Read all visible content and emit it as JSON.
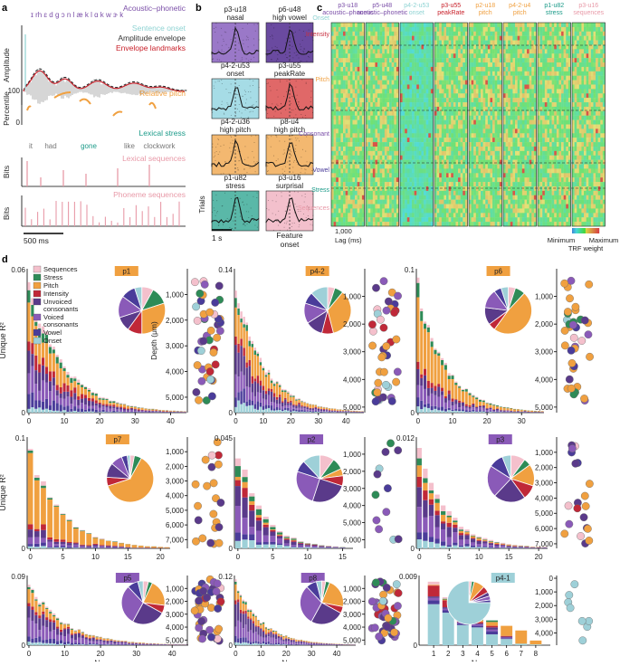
{
  "panels": {
    "a": "a",
    "b": "b",
    "c": "c",
    "d": "d"
  },
  "colors": {
    "acoustic": "#7b4fa8",
    "onset": "#8fd3d3",
    "envelope": "#333333",
    "landmark": "#c8202a",
    "pitch": "#f0a040",
    "stress": "#1a9a88",
    "lexical": "#e89aa8",
    "phoneme": "#e89aa8",
    "intensity": "#c83040",
    "unvoiced": "#5a3a8a",
    "voiced": "#8a5ab8",
    "vowel": "#4a3c9a"
  },
  "panel_a": {
    "phonemes": "ɪ rh ɛ d  ɡ ɔ   n l   æ   k l ɑ   k w ɝ   k",
    "legend": {
      "acoustic": "Acoustic–phonetic",
      "onset": "Sentence onset",
      "envelope": "Amplitude envelope",
      "landmarks": "Envelope landmarks",
      "pitch": "Relative pitch",
      "stress": "Lexical stress",
      "lexical": "Lexical sequences",
      "phoneme": "Phoneme sequences"
    },
    "ylabels": {
      "amplitude": "Amplitude",
      "percentile": "Percentile",
      "bits1": "Bits",
      "bits2": "Bits"
    },
    "pct_ticks": [
      "100",
      "0"
    ],
    "words": [
      {
        "text": "it",
        "color": "#777777"
      },
      {
        "text": "had",
        "color": "#777777"
      },
      {
        "text": "gone",
        "color": "#1a9a88"
      },
      {
        "text": "like",
        "color": "#777777"
      },
      {
        "text": "clockwork",
        "color": "#777777"
      }
    ],
    "scalebar": "500 ms"
  },
  "panel_b": {
    "units": [
      {
        "id": "p3-u18",
        "label": "nasal",
        "bg": "#9a78c8"
      },
      {
        "id": "p6-u48",
        "label": "high vowel",
        "bg": "#6a4aa0"
      },
      {
        "id": "p4-2-u53",
        "label": "onset",
        "bg": "#a6dce6"
      },
      {
        "id": "p3-u55",
        "label": "peakRate",
        "bg": "#e06868"
      },
      {
        "id": "p4-2-u36",
        "label": "high pitch",
        "bg": "#f3b870"
      },
      {
        "id": "p8-u4",
        "label": "high pitch",
        "bg": "#f3b870"
      },
      {
        "id": "p1-u82",
        "label": "stress",
        "bg": "#5ab8a8"
      },
      {
        "id": "p3-u16",
        "label": "surprisal",
        "bg": "#f3c0cc"
      }
    ],
    "trials": "Trials",
    "scale": "1 s",
    "feature_onset": "Feature\nonset"
  },
  "panel_c": {
    "columns": [
      {
        "id": "p3-u18",
        "label": "acoustic–phonetic",
        "color": "#7b4fa8"
      },
      {
        "id": "p5-u48",
        "label": "acoustic–phonetic",
        "color": "#7b4fa8"
      },
      {
        "id": "p4-2-u53",
        "label": "onset",
        "color": "#8fd3d3"
      },
      {
        "id": "p3-u55",
        "label": "peakRate",
        "color": "#c8202a"
      },
      {
        "id": "p2-u18",
        "label": "pitch",
        "color": "#f0a040"
      },
      {
        "id": "p4-2-u4",
        "label": "pitch",
        "color": "#f0a040"
      },
      {
        "id": "p1-u82",
        "label": "stress",
        "color": "#1a9a88"
      },
      {
        "id": "p3-u16",
        "label": "sequences",
        "color": "#e89aa8"
      }
    ],
    "rows": [
      {
        "label": "Onset",
        "color": "#8fd3d3"
      },
      {
        "label": "Intensity",
        "color": "#c83040"
      },
      {
        "label": "Pitch",
        "color": "#f0a040"
      },
      {
        "label": "Consonant",
        "color": "#7b4fa8"
      },
      {
        "label": "Vowel",
        "color": "#4a3c9a"
      },
      {
        "label": "Stress",
        "color": "#1a9a88"
      },
      {
        "label": "Sequences",
        "color": "#e89aa8"
      }
    ],
    "lag_tick": "1,000",
    "lag_label": "Lag (ms)",
    "cbar_min": "Minimum",
    "cbar_max": "Maximum",
    "cbar_label": "TRF weight"
  },
  "panel_d": {
    "legend": [
      {
        "label": "Sequences",
        "color": "#f4c0cc"
      },
      {
        "label": "Stress",
        "color": "#2e8b57"
      },
      {
        "label": "Pitch",
        "color": "#f0a040"
      },
      {
        "label": "Intensity",
        "color": "#c02838"
      },
      {
        "label": "Unvoiced\nconsonants",
        "color": "#5a3a8a"
      },
      {
        "label": "Voiced\nconsonants",
        "color": "#8a5ab8"
      },
      {
        "label": "Vowel",
        "color": "#4a3c9a"
      },
      {
        "label": "Onset",
        "color": "#9ed0d8"
      }
    ],
    "ylabel": "Unique R²",
    "xlabel": "Neuron",
    "depth_label": "Depth (μm)"
  },
  "chart_data": [
    {
      "type": "bar",
      "title": "p1",
      "badge_color": "#f0a040",
      "ylim": [
        0,
        0.06
      ],
      "ymax_label": "0.06",
      "n": 45,
      "xticks": [
        0,
        10,
        20,
        30,
        40
      ],
      "xlim": [
        0,
        45
      ],
      "composition": {
        "Sequences": 0.06,
        "Stress": 0.09,
        "Pitch": 0.26,
        "Intensity": 0.12,
        "Unvoiced consonants": 0.16,
        "Voiced consonants": 0.17,
        "Vowel": 0.1,
        "Onset": 0.04
      },
      "pie": [
        0.08,
        0.12,
        0.3,
        0.1,
        0.1,
        0.15,
        0.1,
        0.05
      ],
      "depth_ticks": [
        1000,
        2000,
        3000,
        4000,
        5000
      ],
      "depth_range": [
        0,
        5600
      ],
      "depth_points": 45
    },
    {
      "type": "bar",
      "title": "p4-2",
      "badge_color": "#f0a040",
      "ylim": [
        0,
        0.14
      ],
      "ymax_label": "0.14",
      "n": 47,
      "xticks": [
        0,
        10,
        20,
        30,
        40
      ],
      "xlim": [
        0,
        47
      ],
      "composition": {
        "Sequences": 0.05,
        "Stress": 0.05,
        "Pitch": 0.3,
        "Intensity": 0.08,
        "Unvoiced consonants": 0.18,
        "Voiced consonants": 0.16,
        "Vowel": 0.1,
        "Onset": 0.08
      },
      "pie": [
        0.05,
        0.06,
        0.35,
        0.08,
        0.12,
        0.14,
        0.08,
        0.12
      ],
      "depth_ticks": [
        1000,
        2000,
        3000,
        4000,
        5000
      ],
      "depth_range": [
        0,
        5200
      ],
      "depth_points": 40
    },
    {
      "type": "bar",
      "title": "p6",
      "badge_color": "#f0a040",
      "ylim": [
        0,
        0.1
      ],
      "ymax_label": "0.1",
      "n": 37,
      "xticks": [
        0,
        10,
        20,
        30
      ],
      "xlim": [
        0,
        37
      ],
      "composition": {
        "Sequences": 0.04,
        "Stress": 0.08,
        "Pitch": 0.42,
        "Intensity": 0.06,
        "Unvoiced consonants": 0.14,
        "Voiced consonants": 0.14,
        "Vowel": 0.06,
        "Onset": 0.06
      },
      "pie": [
        0.05,
        0.07,
        0.48,
        0.05,
        0.12,
        0.13,
        0.05,
        0.05
      ],
      "depth_ticks": [
        1000,
        2000,
        3000,
        4000,
        5000
      ],
      "depth_range": [
        0,
        5200
      ],
      "depth_points": 38
    },
    {
      "type": "bar",
      "title": "p7",
      "badge_color": "#f0a040",
      "ylim": [
        0,
        0.1
      ],
      "ymax_label": "0.1",
      "n": 22,
      "xticks": [
        0,
        5,
        10,
        15,
        20
      ],
      "xlim": [
        0,
        22
      ],
      "composition": {
        "Sequences": 0.03,
        "Stress": 0.04,
        "Pitch": 0.65,
        "Intensity": 0.06,
        "Unvoiced consonants": 0.08,
        "Voiced consonants": 0.08,
        "Vowel": 0.04,
        "Onset": 0.02
      },
      "pie": [
        0.03,
        0.05,
        0.62,
        0.06,
        0.1,
        0.08,
        0.04,
        0.02
      ],
      "depth_ticks": [
        1000,
        2000,
        3000,
        4000,
        5000,
        6000,
        7000
      ],
      "depth_range": [
        0,
        7600
      ],
      "depth_points": 22
    },
    {
      "type": "bar",
      "title": "p2",
      "badge_color": "#8a5ab8",
      "ylim": [
        0,
        0.045
      ],
      "ymax_label": "0.045",
      "n": 16,
      "xticks": [
        0,
        5,
        10,
        15
      ],
      "xlim": [
        0,
        17
      ],
      "composition": {
        "Sequences": 0.1,
        "Stress": 0.1,
        "Pitch": 0.05,
        "Intensity": 0.08,
        "Unvoiced consonants": 0.22,
        "Voiced consonants": 0.22,
        "Vowel": 0.08,
        "Onset": 0.15
      },
      "pie": [
        0.1,
        0.08,
        0.05,
        0.07,
        0.25,
        0.25,
        0.08,
        0.12
      ],
      "depth_ticks": [
        1000,
        2000,
        3000,
        4000,
        5000,
        6000
      ],
      "depth_range": [
        0,
        6500
      ],
      "depth_points": 12
    },
    {
      "type": "bar",
      "title": "p3",
      "badge_color": "#8a5ab8",
      "ylim": [
        0,
        0.012
      ],
      "ymax_label": "0.012",
      "n": 22,
      "xticks": [
        0,
        5,
        10,
        15,
        20
      ],
      "xlim": [
        0,
        22
      ],
      "composition": {
        "Sequences": 0.1,
        "Stress": 0.06,
        "Pitch": 0.12,
        "Intensity": 0.1,
        "Unvoiced consonants": 0.22,
        "Voiced consonants": 0.22,
        "Vowel": 0.1,
        "Onset": 0.08
      },
      "pie": [
        0.1,
        0.05,
        0.15,
        0.1,
        0.22,
        0.22,
        0.1,
        0.06
      ],
      "depth_ticks": [
        1000,
        2000,
        3000,
        4000,
        5000,
        6000,
        7000
      ],
      "depth_range": [
        0,
        7300
      ],
      "depth_points": 20
    },
    {
      "type": "bar",
      "title": "p5",
      "badge_color": "#8a5ab8",
      "ylim": [
        0,
        0.09
      ],
      "ymax_label": "0.09",
      "n": 45,
      "xticks": [
        0,
        10,
        20,
        30,
        40
      ],
      "xlim": [
        0,
        45
      ],
      "composition": {
        "Sequences": 0.04,
        "Stress": 0.04,
        "Pitch": 0.18,
        "Intensity": 0.06,
        "Unvoiced consonants": 0.25,
        "Voiced consonants": 0.28,
        "Vowel": 0.1,
        "Onset": 0.05
      },
      "pie": [
        0.04,
        0.03,
        0.2,
        0.06,
        0.25,
        0.3,
        0.08,
        0.04
      ],
      "depth_ticks": [
        1000,
        2000,
        3000,
        4000,
        5000
      ],
      "depth_range": [
        0,
        5400
      ],
      "depth_points": 45
    },
    {
      "type": "bar",
      "title": "p8",
      "badge_color": "#8a5ab8",
      "ylim": [
        0,
        0.12
      ],
      "ymax_label": "0.12",
      "n": 48,
      "xticks": [
        0,
        10,
        20,
        30,
        40
      ],
      "xlim": [
        0,
        48
      ],
      "composition": {
        "Sequences": 0.03,
        "Stress": 0.04,
        "Pitch": 0.2,
        "Intensity": 0.05,
        "Unvoiced consonants": 0.26,
        "Voiced consonants": 0.28,
        "Vowel": 0.09,
        "Onset": 0.05
      },
      "pie": [
        0.03,
        0.03,
        0.22,
        0.05,
        0.25,
        0.3,
        0.08,
        0.04
      ],
      "depth_ticks": [
        1000,
        2000,
        3000,
        4000,
        5000
      ],
      "depth_range": [
        0,
        5400
      ],
      "depth_points": 48
    },
    {
      "type": "bar",
      "title": "p4-1",
      "badge_color": "#9ed0d8",
      "ylim": [
        0,
        0.009
      ],
      "ymax_label": "0.009",
      "n": 8,
      "xticks": [
        1,
        2,
        3,
        4,
        5,
        6,
        7,
        8
      ],
      "xlim": [
        0,
        9
      ],
      "values": [
        0.0082,
        0.0062,
        0.0036,
        0.0034,
        0.0032,
        0.0025,
        0.0019,
        0.0006
      ],
      "stacks": [
        {
          "Onset": 0.0053,
          "Vowel": 0.0005,
          "Voiced consonants": 0.0003,
          "Unvoiced consonants": 0.0002,
          "Intensity": 0.0014,
          "Pitch": 0.0001,
          "Stress": 0.0,
          "Sequences": 0.0004
        },
        {
          "Onset": 0.0042,
          "Vowel": 0.0003,
          "Voiced consonants": 0.0002,
          "Unvoiced consonants": 0.0002,
          "Intensity": 0.0009,
          "Pitch": 0.0001,
          "Stress": 0.0001,
          "Sequences": 0.0002
        },
        {
          "Onset": 0.0026,
          "Vowel": 0.0002,
          "Voiced consonants": 0.0001,
          "Unvoiced consonants": 0.0001,
          "Intensity": 0.0001,
          "Pitch": 0.0001,
          "Stress": 0.0004,
          "Sequences": 0.0
        },
        {
          "Onset": 0.0023,
          "Vowel": 0.0002,
          "Voiced consonants": 0.0002,
          "Unvoiced consonants": 0.0001,
          "Intensity": 0.0002,
          "Pitch": 0.0002,
          "Stress": 0.0002,
          "Sequences": 0.0
        },
        {
          "Onset": 0.0014,
          "Vowel": 0.0004,
          "Voiced consonants": 0.0002,
          "Unvoiced consonants": 0.0003,
          "Intensity": 0.0002,
          "Pitch": 0.0005,
          "Stress": 0.0002,
          "Sequences": 0.0
        },
        {
          "Onset": 0.0008,
          "Vowel": 0.0001,
          "Voiced consonants": 0.0001,
          "Unvoiced consonants": 0.0001,
          "Intensity": 0.0001,
          "Pitch": 0.0013,
          "Stress": 0.0,
          "Sequences": 0.0
        },
        {
          "Onset": 0.0002,
          "Vowel": 0.0,
          "Voiced consonants": 0.0,
          "Unvoiced consonants": 0.0,
          "Intensity": 0.0,
          "Pitch": 0.0017,
          "Stress": 0.0,
          "Sequences": 0.0
        },
        {
          "Onset": 0.0001,
          "Vowel": 0.0,
          "Voiced consonants": 0.0,
          "Unvoiced consonants": 0.0,
          "Intensity": 0.0,
          "Pitch": 0.0005,
          "Stress": 0.0,
          "Sequences": 0.0
        }
      ],
      "pie": [
        0.02,
        0.02,
        0.08,
        0.05,
        0.03,
        0.03,
        0.02,
        0.75
      ],
      "depth_ticks": [
        0,
        1000,
        2000,
        3000,
        4000
      ],
      "depth_range": [
        -200,
        4900
      ],
      "depth_points": 8
    }
  ]
}
